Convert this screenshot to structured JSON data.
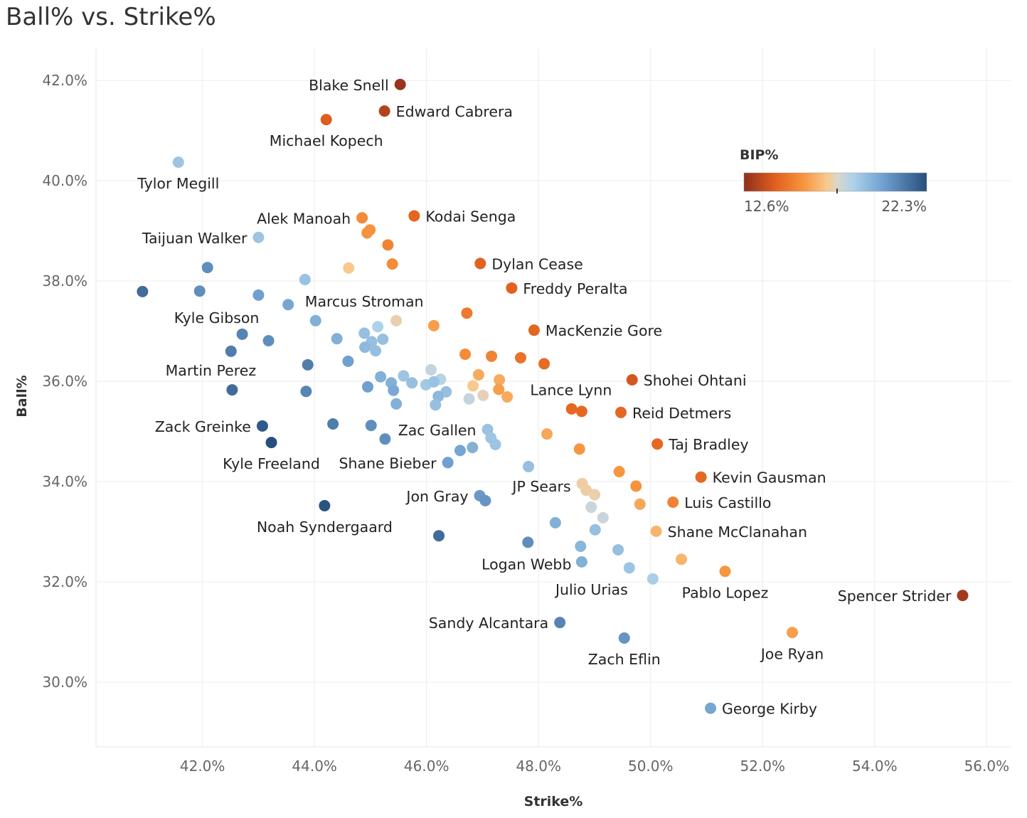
{
  "title": "Ball% vs. Strike%",
  "chart_data": {
    "type": "scatter",
    "title": "Ball% vs. Strike%",
    "xlabel": "Strike%",
    "ylabel": "Ball%",
    "xlim": [
      40.1,
      56.44
    ],
    "ylim": [
      28.71,
      42.64
    ],
    "xticks": [
      "42.0%",
      "44.0%",
      "46.0%",
      "48.0%",
      "50.0%",
      "52.0%",
      "54.0%",
      "56.0%"
    ],
    "xtick_values": [
      42,
      44,
      46,
      48,
      50,
      52,
      54,
      56
    ],
    "yticks": [
      "30.0%",
      "32.0%",
      "34.0%",
      "36.0%",
      "38.0%",
      "40.0%",
      "42.0%"
    ],
    "ytick_values": [
      30,
      32,
      34,
      36,
      38,
      40,
      42
    ],
    "grid": true,
    "color_legend": {
      "title": "BIP%",
      "min_label": "12.6%",
      "max_label": "22.3%",
      "min": 12.6,
      "max": 22.3,
      "placement": "top-right",
      "stops": [
        [
          12.6,
          "#8e2f1c"
        ],
        [
          14.3,
          "#e2611e"
        ],
        [
          15.8,
          "#f7963f"
        ],
        [
          17.0,
          "#f8c98c"
        ],
        [
          17.6,
          "#d9d6cf"
        ],
        [
          18.4,
          "#add2ea"
        ],
        [
          20.0,
          "#6fa0cf"
        ],
        [
          22.3,
          "#274f7e"
        ]
      ]
    },
    "points": [
      {
        "name": "Blake Snell",
        "x": 45.53,
        "y": 41.92,
        "bip": 12.8,
        "label_pos": "left"
      },
      {
        "name": "Edward Cabrera",
        "x": 45.25,
        "y": 41.39,
        "bip": 13.3,
        "label_pos": "right"
      },
      {
        "name": "Michael Kopech",
        "x": 44.21,
        "y": 41.22,
        "bip": 14.2,
        "label_pos": "below"
      },
      {
        "name": "Tylor Megill",
        "x": 41.57,
        "y": 40.37,
        "bip": 18.8,
        "label_pos": "below"
      },
      {
        "name": "Alek Manoah",
        "x": 44.85,
        "y": 39.26,
        "bip": 15.5,
        "label_pos": "left"
      },
      {
        "name": "Kodai Senga",
        "x": 45.78,
        "y": 39.3,
        "bip": 14.4,
        "label_pos": "right"
      },
      {
        "name": "Taijuan Walker",
        "x": 43.0,
        "y": 38.87,
        "bip": 18.8,
        "label_pos": "left"
      },
      {
        "name": "Dylan Cease",
        "x": 46.96,
        "y": 38.35,
        "bip": 14.3,
        "label_pos": "right"
      },
      {
        "name": "Freddy Peralta",
        "x": 47.52,
        "y": 37.86,
        "bip": 14.3,
        "label_pos": "right"
      },
      {
        "name": "Marcus Stroman",
        "x": 45.46,
        "y": 37.21,
        "bip": 17.3,
        "label_pos": "above"
      },
      {
        "name": "Kyle Gibson",
        "x": 42.71,
        "y": 36.94,
        "bip": 20.8,
        "label_pos": "above-left"
      },
      {
        "name": "MacKenzie Gore",
        "x": 47.92,
        "y": 37.02,
        "bip": 14.4,
        "label_pos": "right"
      },
      {
        "name": "Martin Perez",
        "x": 42.53,
        "y": 35.83,
        "bip": 21.5,
        "label_pos": "above"
      },
      {
        "name": "Shohei Ohtani",
        "x": 49.67,
        "y": 36.03,
        "bip": 14.0,
        "label_pos": "right"
      },
      {
        "name": "Lance Lynn",
        "x": 48.77,
        "y": 35.4,
        "bip": 14.5,
        "label_pos": "above"
      },
      {
        "name": "Reid Detmers",
        "x": 49.47,
        "y": 35.38,
        "bip": 14.5,
        "label_pos": "right"
      },
      {
        "name": "Zack Greinke",
        "x": 43.07,
        "y": 35.11,
        "bip": 22.0,
        "label_pos": "left"
      },
      {
        "name": "Zac Gallen",
        "x": 47.09,
        "y": 35.04,
        "bip": 18.9,
        "label_pos": "left"
      },
      {
        "name": "Taj Bradley",
        "x": 50.12,
        "y": 34.75,
        "bip": 14.5,
        "label_pos": "right"
      },
      {
        "name": "Kyle Freeland",
        "x": 43.23,
        "y": 34.78,
        "bip": 22.3,
        "label_pos": "below"
      },
      {
        "name": "Shane Bieber",
        "x": 46.38,
        "y": 34.38,
        "bip": 20.0,
        "label_pos": "left"
      },
      {
        "name": "Kevin Gausman",
        "x": 50.9,
        "y": 34.09,
        "bip": 14.5,
        "label_pos": "right"
      },
      {
        "name": "JP Sears",
        "x": 48.78,
        "y": 33.96,
        "bip": 17.2,
        "label_pos": "left"
      },
      {
        "name": "Jon Gray",
        "x": 46.95,
        "y": 33.72,
        "bip": 20.2,
        "label_pos": "left"
      },
      {
        "name": "Luis Castillo",
        "x": 50.4,
        "y": 33.59,
        "bip": 15.3,
        "label_pos": "right"
      },
      {
        "name": "Noah Syndergaard",
        "x": 44.18,
        "y": 33.52,
        "bip": 22.2,
        "label_pos": "below"
      },
      {
        "name": "Shane McClanahan",
        "x": 50.1,
        "y": 33.01,
        "bip": 16.5,
        "label_pos": "right"
      },
      {
        "name": "Logan Webb",
        "x": 47.81,
        "y": 32.79,
        "bip": 20.5,
        "label_pos": "below"
      },
      {
        "name": "Julio Urias",
        "x": 48.77,
        "y": 32.4,
        "bip": 19.5,
        "label_pos": "below"
      },
      {
        "name": "Pablo Lopez",
        "x": 51.33,
        "y": 32.21,
        "bip": 15.8,
        "label_pos": "below"
      },
      {
        "name": "Spencer Strider",
        "x": 55.57,
        "y": 31.73,
        "bip": 13.0,
        "label_pos": "left"
      },
      {
        "name": "Sandy Alcantara",
        "x": 48.38,
        "y": 31.19,
        "bip": 20.8,
        "label_pos": "left"
      },
      {
        "name": "Zach Eflin",
        "x": 49.53,
        "y": 30.88,
        "bip": 20.3,
        "label_pos": "below"
      },
      {
        "name": "Joe Ryan",
        "x": 52.53,
        "y": 30.99,
        "bip": 16.0,
        "label_pos": "below"
      },
      {
        "name": "George Kirby",
        "x": 51.07,
        "y": 29.48,
        "bip": 19.8,
        "label_pos": "right"
      },
      {
        "x": 40.93,
        "y": 37.79,
        "bip": 21.5
      },
      {
        "x": 42.09,
        "y": 38.27,
        "bip": 20.5
      },
      {
        "x": 41.95,
        "y": 37.8,
        "bip": 20.5
      },
      {
        "x": 43.0,
        "y": 37.72,
        "bip": 20.0
      },
      {
        "x": 43.53,
        "y": 37.53,
        "bip": 19.8
      },
      {
        "x": 43.83,
        "y": 38.03,
        "bip": 18.9
      },
      {
        "x": 44.61,
        "y": 38.26,
        "bip": 17.0
      },
      {
        "x": 45.31,
        "y": 38.72,
        "bip": 15.3
      },
      {
        "x": 45.39,
        "y": 38.34,
        "bip": 15.5
      },
      {
        "x": 44.99,
        "y": 39.02,
        "bip": 15.7
      },
      {
        "x": 44.94,
        "y": 38.96,
        "bip": 15.7
      },
      {
        "x": 46.72,
        "y": 37.36,
        "bip": 15.0
      },
      {
        "x": 46.13,
        "y": 37.11,
        "bip": 16.0
      },
      {
        "x": 44.02,
        "y": 37.21,
        "bip": 19.5
      },
      {
        "x": 44.4,
        "y": 36.85,
        "bip": 19.5
      },
      {
        "x": 45.13,
        "y": 37.09,
        "bip": 18.4
      },
      {
        "x": 44.89,
        "y": 36.96,
        "bip": 19.0
      },
      {
        "x": 45.02,
        "y": 36.79,
        "bip": 19.0
      },
      {
        "x": 45.22,
        "y": 36.84,
        "bip": 19.0
      },
      {
        "x": 44.9,
        "y": 36.68,
        "bip": 19.2
      },
      {
        "x": 45.09,
        "y": 36.61,
        "bip": 19.0
      },
      {
        "x": 43.18,
        "y": 36.81,
        "bip": 20.5
      },
      {
        "x": 42.51,
        "y": 36.6,
        "bip": 21.0
      },
      {
        "x": 44.6,
        "y": 36.4,
        "bip": 20.0
      },
      {
        "x": 43.88,
        "y": 36.33,
        "bip": 21.0
      },
      {
        "x": 46.69,
        "y": 36.54,
        "bip": 15.5
      },
      {
        "x": 47.16,
        "y": 36.5,
        "bip": 15.3
      },
      {
        "x": 47.68,
        "y": 36.47,
        "bip": 14.8
      },
      {
        "x": 48.1,
        "y": 36.35,
        "bip": 14.6
      },
      {
        "x": 46.93,
        "y": 36.13,
        "bip": 16.3
      },
      {
        "x": 47.3,
        "y": 36.03,
        "bip": 16.3
      },
      {
        "x": 46.08,
        "y": 36.23,
        "bip": 18.0
      },
      {
        "x": 46.25,
        "y": 36.04,
        "bip": 18.2
      },
      {
        "x": 45.18,
        "y": 36.09,
        "bip": 19.5
      },
      {
        "x": 45.37,
        "y": 35.97,
        "bip": 19.5
      },
      {
        "x": 45.59,
        "y": 36.11,
        "bip": 18.8
      },
      {
        "x": 45.74,
        "y": 35.97,
        "bip": 19.0
      },
      {
        "x": 44.95,
        "y": 35.89,
        "bip": 20.0
      },
      {
        "x": 45.41,
        "y": 35.82,
        "bip": 19.7
      },
      {
        "x": 45.99,
        "y": 35.93,
        "bip": 18.7
      },
      {
        "x": 46.13,
        "y": 35.99,
        "bip": 18.9
      },
      {
        "x": 46.35,
        "y": 35.79,
        "bip": 19.0
      },
      {
        "x": 46.21,
        "y": 35.7,
        "bip": 19.2
      },
      {
        "x": 46.16,
        "y": 35.53,
        "bip": 19.0
      },
      {
        "x": 45.46,
        "y": 35.55,
        "bip": 19.5
      },
      {
        "x": 46.83,
        "y": 35.91,
        "bip": 17.0
      },
      {
        "x": 47.01,
        "y": 35.72,
        "bip": 17.4
      },
      {
        "x": 46.76,
        "y": 35.65,
        "bip": 18.0
      },
      {
        "x": 47.29,
        "y": 35.84,
        "bip": 16.0
      },
      {
        "x": 47.44,
        "y": 35.69,
        "bip": 16.3
      },
      {
        "x": 43.85,
        "y": 35.8,
        "bip": 20.8
      },
      {
        "x": 48.59,
        "y": 35.45,
        "bip": 14.5
      },
      {
        "x": 44.33,
        "y": 35.15,
        "bip": 21.0
      },
      {
        "x": 45.01,
        "y": 35.12,
        "bip": 20.5
      },
      {
        "x": 45.26,
        "y": 34.85,
        "bip": 20.5
      },
      {
        "x": 48.15,
        "y": 34.95,
        "bip": 16.2
      },
      {
        "x": 48.73,
        "y": 34.65,
        "bip": 15.8
      },
      {
        "x": 47.15,
        "y": 34.87,
        "bip": 18.8
      },
      {
        "x": 47.23,
        "y": 34.74,
        "bip": 18.8
      },
      {
        "x": 46.82,
        "y": 34.68,
        "bip": 19.5
      },
      {
        "x": 46.6,
        "y": 34.62,
        "bip": 19.8
      },
      {
        "x": 47.82,
        "y": 34.3,
        "bip": 19.0
      },
      {
        "x": 49.44,
        "y": 34.2,
        "bip": 15.8
      },
      {
        "x": 49.74,
        "y": 33.91,
        "bip": 15.7
      },
      {
        "x": 47.05,
        "y": 33.62,
        "bip": 20.3
      },
      {
        "x": 48.85,
        "y": 33.83,
        "bip": 17.2
      },
      {
        "x": 49.0,
        "y": 33.74,
        "bip": 17.3
      },
      {
        "x": 49.81,
        "y": 33.55,
        "bip": 16.2
      },
      {
        "x": 48.94,
        "y": 33.49,
        "bip": 17.9
      },
      {
        "x": 49.15,
        "y": 33.28,
        "bip": 17.9
      },
      {
        "x": 48.3,
        "y": 33.18,
        "bip": 19.5
      },
      {
        "x": 49.01,
        "y": 33.04,
        "bip": 19.0
      },
      {
        "x": 46.22,
        "y": 32.92,
        "bip": 21.5
      },
      {
        "x": 49.42,
        "y": 32.64,
        "bip": 19.0
      },
      {
        "x": 49.62,
        "y": 32.28,
        "bip": 18.8
      },
      {
        "x": 50.04,
        "y": 32.06,
        "bip": 18.5
      },
      {
        "x": 50.55,
        "y": 32.45,
        "bip": 16.5
      },
      {
        "x": 48.75,
        "y": 32.71,
        "bip": 19.3
      }
    ]
  }
}
